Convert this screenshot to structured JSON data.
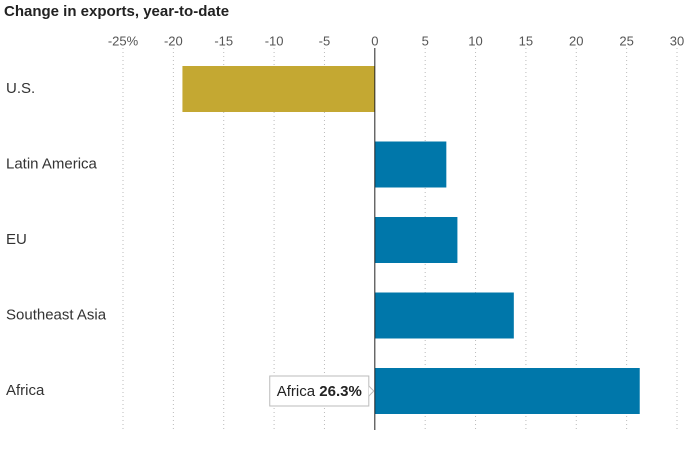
{
  "chart_data": {
    "type": "bar",
    "orientation": "horizontal",
    "title": "Change in exports, year-to-date",
    "categories": [
      "U.S.",
      "Latin America",
      "EU",
      "Southeast Asia",
      "Africa"
    ],
    "values": [
      -19.1,
      7.1,
      8.2,
      13.8,
      26.3
    ],
    "value_labels": [
      null,
      null,
      null,
      null,
      "26.3%"
    ],
    "colors": [
      "#c4a832",
      "#0077aa",
      "#0077aa",
      "#0077aa",
      "#0077aa"
    ],
    "xlim": [
      -25,
      30
    ],
    "xticks": [
      {
        "value": -25,
        "label": "-25%"
      },
      -20,
      -15,
      -10,
      -5,
      0,
      5,
      10,
      15,
      20,
      25,
      30
    ],
    "grid": true
  }
}
